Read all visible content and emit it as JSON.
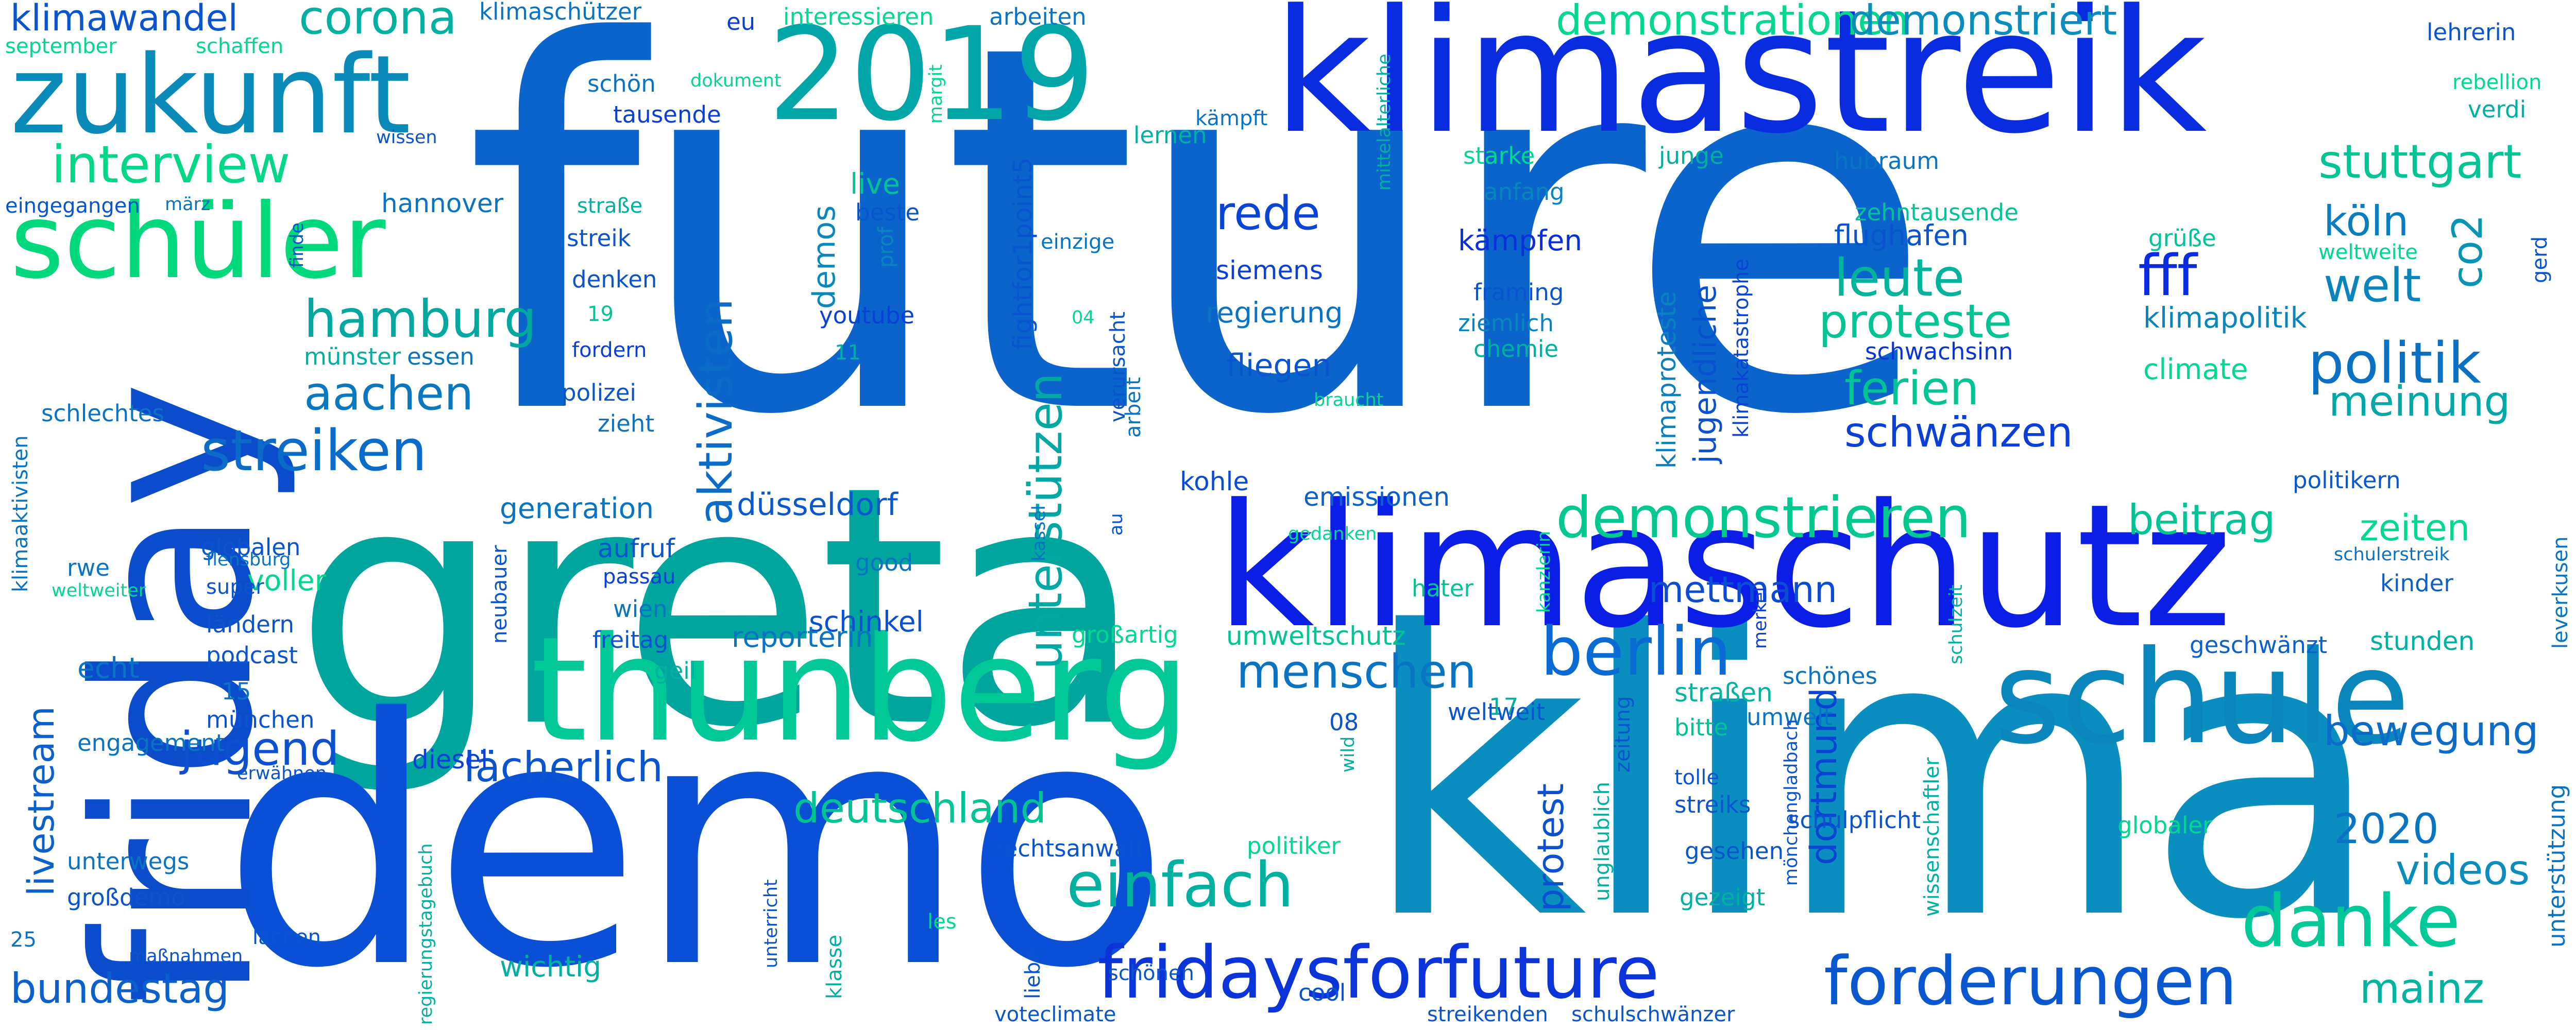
{
  "palette": [
    "#0a1ee6",
    "#0050d6",
    "#0a6fd0",
    "#008fb5",
    "#00aaa8",
    "#00c896",
    "#00e48a"
  ],
  "words": [
    {
      "text": "future",
      "color": "#0a64cc"
    },
    {
      "text": "greta",
      "color": "#00a59e"
    },
    {
      "text": "klima",
      "color": "#0a8ec0"
    },
    {
      "text": "demo",
      "color": "#0a50d6"
    },
    {
      "text": "klimaschutz",
      "color": "#0a1ee6"
    },
    {
      "text": "klimastreik",
      "color": "#0a2ce0"
    },
    {
      "text": "friday",
      "color": "#0a4ccc"
    },
    {
      "text": "thunberg",
      "color": "#00c896"
    },
    {
      "text": "2019",
      "color": "#00a5a8"
    },
    {
      "text": "zukunft",
      "color": "#0a8ab8"
    },
    {
      "text": "schule",
      "color": "#0a86bc"
    },
    {
      "text": "schüler",
      "color": "#00d87c"
    },
    {
      "text": "fridaysforfuture",
      "color": "#0a34d8"
    },
    {
      "text": "forderungen",
      "color": "#0a58d0"
    },
    {
      "text": "danke",
      "color": "#00c896"
    },
    {
      "text": "einfach",
      "color": "#00b0a0"
    },
    {
      "text": "demonstrieren",
      "color": "#00c890"
    },
    {
      "text": "berlin",
      "color": "#0a6ad4"
    },
    {
      "text": "interview",
      "color": "#00d888"
    },
    {
      "text": "hamburg",
      "color": "#00a8a0"
    },
    {
      "text": "streiken",
      "color": "#0a6cc8"
    },
    {
      "text": "aachen",
      "color": "#0a78c0"
    },
    {
      "text": "aktivisten",
      "color": "#0a6cc8"
    },
    {
      "text": "unterstützen",
      "color": "#00a8a4"
    },
    {
      "text": "menschen",
      "color": "#0a74c4"
    },
    {
      "text": "rede",
      "color": "#0a44d4"
    },
    {
      "text": "leute",
      "color": "#00b49c"
    },
    {
      "text": "proteste",
      "color": "#00c494"
    },
    {
      "text": "ferien",
      "color": "#00c494"
    },
    {
      "text": "fff",
      "color": "#0a2ce0"
    },
    {
      "text": "politik",
      "color": "#0a70c4"
    },
    {
      "text": "welt",
      "color": "#0a84bc"
    },
    {
      "text": "co2",
      "color": "#0a94b4"
    },
    {
      "text": "köln",
      "color": "#0a7cc0"
    },
    {
      "text": "stuttgart",
      "color": "#00c494"
    },
    {
      "text": "meinung",
      "color": "#00a8a8"
    },
    {
      "text": "beitrag",
      "color": "#00c496"
    },
    {
      "text": "zeiten",
      "color": "#00d890"
    },
    {
      "text": "bewegung",
      "color": "#0a6cc8"
    },
    {
      "text": "2020",
      "color": "#0a74c4"
    },
    {
      "text": "videos",
      "color": "#0a8cbc"
    },
    {
      "text": "mainz",
      "color": "#00b4a0"
    },
    {
      "text": "jugend",
      "color": "#0a50d0"
    },
    {
      "text": "lächerlich",
      "color": "#0a54d0"
    },
    {
      "text": "deutschland",
      "color": "#00c494"
    },
    {
      "text": "mettmann",
      "color": "#0a4cd4"
    },
    {
      "text": "schwänzen",
      "color": "#0a40d8"
    },
    {
      "text": "livestream",
      "color": "#0a60cc"
    },
    {
      "text": "bundestag",
      "color": "#0a60cc"
    },
    {
      "text": "demonstrationen",
      "color": "#00d890"
    },
    {
      "text": "demonstriert",
      "color": "#0a8cbc"
    },
    {
      "text": "klimawandel",
      "color": "#0a54d0"
    },
    {
      "text": "corona",
      "color": "#00b0a0"
    },
    {
      "text": "protest",
      "color": "#0a50d0"
    },
    {
      "text": "dortmund",
      "color": "#0a44d4"
    },
    {
      "text": "klimaproteste",
      "color": "#0a80c0"
    },
    {
      "text": "jugendliche",
      "color": "#0a50d0"
    },
    {
      "text": "klimakatastrophe",
      "color": "#0a44d4"
    },
    {
      "text": "fightfor1point5",
      "color": "#0a54d0"
    },
    {
      "text": "demos",
      "color": "#0a88bc"
    },
    {
      "text": "generation",
      "color": "#0a74c4"
    },
    {
      "text": "düsseldorf",
      "color": "#0a58cc"
    },
    {
      "text": "kohle",
      "color": "#0a4cd4"
    },
    {
      "text": "emissionen",
      "color": "#0a60cc"
    },
    {
      "text": "schinkel",
      "color": "#0a50d0"
    },
    {
      "text": "reporterin",
      "color": "#0a74c4"
    },
    {
      "text": "umweltschutz",
      "color": "#00c494"
    },
    {
      "text": "klimapolitik",
      "color": "#0a84bc"
    },
    {
      "text": "flughafen",
      "color": "#0a54d0"
    },
    {
      "text": "regierung",
      "color": "#0a74c4"
    },
    {
      "text": "fliegen",
      "color": "#0a54d0"
    },
    {
      "text": "siemens",
      "color": "#0a40d8"
    },
    {
      "text": "kämpfen",
      "color": "#0a30dc"
    },
    {
      "text": "politikern",
      "color": "#0a58d0"
    },
    {
      "text": "kinder",
      "color": "#0a60cc"
    },
    {
      "text": "stunden",
      "color": "#00b0a0"
    },
    {
      "text": "geschwänzt",
      "color": "#0a60cc"
    },
    {
      "text": "schönes",
      "color": "#0a74c4"
    },
    {
      "text": "straßen",
      "color": "#00b4a0"
    },
    {
      "text": "bitte",
      "color": "#00c496"
    },
    {
      "text": "umwelt",
      "color": "#0a74c4"
    },
    {
      "text": "streiks",
      "color": "#0a54d0"
    },
    {
      "text": "gesehen",
      "color": "#0a54d0"
    },
    {
      "text": "gezeigt",
      "color": "#00b0a0"
    },
    {
      "text": "schwachsinn",
      "color": "#0a34d8"
    },
    {
      "text": "climate",
      "color": "#00d890"
    },
    {
      "text": "zehntausende",
      "color": "#00c496"
    },
    {
      "text": "grüße",
      "color": "#00c496"
    },
    {
      "text": "weltweite",
      "color": "#00d890"
    },
    {
      "text": "hubraum",
      "color": "#0a74c4"
    },
    {
      "text": "junge",
      "color": "#00b0a0"
    },
    {
      "text": "starke",
      "color": "#00d890"
    },
    {
      "text": "anfang",
      "color": "#0a84bc"
    },
    {
      "text": "framing",
      "color": "#0a54d0"
    },
    {
      "text": "ziemlich",
      "color": "#0a84bc"
    },
    {
      "text": "chemie",
      "color": "#00b0a0"
    },
    {
      "text": "interessieren",
      "color": "#00d890"
    },
    {
      "text": "arbeiten",
      "color": "#0a74c4"
    },
    {
      "text": "lernen",
      "color": "#00b0a0"
    },
    {
      "text": "live",
      "color": "#00c496"
    },
    {
      "text": "beste",
      "color": "#0a54d0"
    },
    {
      "text": "einzige",
      "color": "#0a74c4"
    },
    {
      "text": "prof",
      "color": "#0a84bc"
    },
    {
      "text": "youtube",
      "color": "#0a40d8"
    },
    {
      "text": "11",
      "color": "#00b0a0"
    },
    {
      "text": "04",
      "color": "#00d890"
    },
    {
      "text": "verursacht",
      "color": "#0a54d0"
    },
    {
      "text": "arbeit",
      "color": "#0a74c4"
    },
    {
      "text": "braucht",
      "color": "#00d890"
    },
    {
      "text": "gedanken",
      "color": "#00d890"
    },
    {
      "text": "kassel",
      "color": "#0a74c4"
    },
    {
      "text": "au",
      "color": "#0a54d0"
    },
    {
      "text": "großartig",
      "color": "#00d890"
    },
    {
      "text": "08",
      "color": "#0a54d0"
    },
    {
      "text": "wild",
      "color": "#00b0a0"
    },
    {
      "text": "17",
      "color": "#00b0a0"
    },
    {
      "text": "weltweit",
      "color": "#0a54d0"
    },
    {
      "text": "hater",
      "color": "#00c496"
    },
    {
      "text": "kanzlerin",
      "color": "#00d890"
    },
    {
      "text": "zeitung",
      "color": "#0a54d0"
    },
    {
      "text": "merkel",
      "color": "#0a40d8"
    },
    {
      "text": "mönchengladbach",
      "color": "#0a54d0"
    },
    {
      "text": "wissenschaftler",
      "color": "#00b0a0"
    },
    {
      "text": "schulzeit",
      "color": "#00b0a0"
    },
    {
      "text": "unglaublich",
      "color": "#00b0a0"
    },
    {
      "text": "tolle",
      "color": "#0a54d0"
    },
    {
      "text": "schulpflicht",
      "color": "#0a54d0"
    },
    {
      "text": "globaler",
      "color": "#00d890"
    },
    {
      "text": "unterstützung",
      "color": "#0a74c4"
    },
    {
      "text": "leverkusen",
      "color": "#0a74c4"
    },
    {
      "text": "schulerstreik",
      "color": "#0a74c4"
    },
    {
      "text": "rebellion",
      "color": "#00d890"
    },
    {
      "text": "verdi",
      "color": "#00b0a0"
    },
    {
      "text": "lehrerin",
      "color": "#0a54d0"
    },
    {
      "text": "gerd",
      "color": "#0a54d0"
    },
    {
      "text": "mittelalterliche",
      "color": "#00b0a0"
    },
    {
      "text": "kämpft",
      "color": "#0a74c4"
    },
    {
      "text": "margit",
      "color": "#00d890"
    },
    {
      "text": "dokument",
      "color": "#00d890"
    },
    {
      "text": "eu",
      "color": "#0a40d8"
    },
    {
      "text": "klimaschützer",
      "color": "#0a74c4"
    },
    {
      "text": "september",
      "color": "#00d890"
    },
    {
      "text": "schaffen",
      "color": "#00d890"
    },
    {
      "text": "wissen",
      "color": "#0a54d0"
    },
    {
      "text": "schön",
      "color": "#0a74c4"
    },
    {
      "text": "tausende",
      "color": "#0a40d8"
    },
    {
      "text": "eingegangen",
      "color": "#0a54d0"
    },
    {
      "text": "märz",
      "color": "#0a74c4"
    },
    {
      "text": "finde",
      "color": "#0a54d0"
    },
    {
      "text": "hannover",
      "color": "#0a74c4"
    },
    {
      "text": "straße",
      "color": "#00b0a0"
    },
    {
      "text": "streik",
      "color": "#0a54d0"
    },
    {
      "text": "denken",
      "color": "#0a54d0"
    },
    {
      "text": "19",
      "color": "#00c496"
    },
    {
      "text": "fordern",
      "color": "#0a40d8"
    },
    {
      "text": "münster",
      "color": "#00b0a0"
    },
    {
      "text": "essen",
      "color": "#0a74c4"
    },
    {
      "text": "polizei",
      "color": "#0a54d0"
    },
    {
      "text": "zieht",
      "color": "#0a74c4"
    },
    {
      "text": "schlechtes",
      "color": "#0a74c4"
    },
    {
      "text": "klimaaktivisten",
      "color": "#0a74c4"
    },
    {
      "text": "globalen",
      "color": "#0a54d0"
    },
    {
      "text": "rwe",
      "color": "#0a74c4"
    },
    {
      "text": "voller",
      "color": "#00d890"
    },
    {
      "text": "flensburg",
      "color": "#0a74c4"
    },
    {
      "text": "super",
      "color": "#0a54d0"
    },
    {
      "text": "weltweiter",
      "color": "#00d890"
    },
    {
      "text": "ländern",
      "color": "#0a54d0"
    },
    {
      "text": "podcast",
      "color": "#0a54d0"
    },
    {
      "text": "15",
      "color": "#0a74c4"
    },
    {
      "text": "münchen",
      "color": "#0a54d0"
    },
    {
      "text": "echt",
      "color": "#0a74c4"
    },
    {
      "text": "engagement",
      "color": "#0a74c4"
    },
    {
      "text": "erwähnen",
      "color": "#0a54d0"
    },
    {
      "text": "unterwegs",
      "color": "#0a74c4"
    },
    {
      "text": "großdemo",
      "color": "#0a54d0"
    },
    {
      "text": "25",
      "color": "#0a74c4"
    },
    {
      "text": "regierungstagebuch",
      "color": "#00b0a0"
    },
    {
      "text": "lachen",
      "color": "#0a54d0"
    },
    {
      "text": "maßnahmen",
      "color": "#0a54d0"
    },
    {
      "text": "aufruf",
      "color": "#0a54d0"
    },
    {
      "text": "passau",
      "color": "#0a40d8"
    },
    {
      "text": "wien",
      "color": "#0a74c4"
    },
    {
      "text": "freitag",
      "color": "#0a54d0"
    },
    {
      "text": "geil",
      "color": "#00b0a0"
    },
    {
      "text": "neubauer",
      "color": "#0a54d0"
    },
    {
      "text": "good",
      "color": "#0a74c4"
    },
    {
      "text": "diesel",
      "color": "#0a40d8"
    },
    {
      "text": "wichtig",
      "color": "#00b0a0"
    },
    {
      "text": "klasse",
      "color": "#00b0a0"
    },
    {
      "text": "unterricht",
      "color": "#0a54d0"
    },
    {
      "text": "les",
      "color": "#00d890"
    },
    {
      "text": "liebe",
      "color": "#0a54d0"
    },
    {
      "text": "schönen",
      "color": "#0a54d0"
    },
    {
      "text": "rechtsanwalt",
      "color": "#0a54d0"
    },
    {
      "text": "politiker",
      "color": "#00d890"
    },
    {
      "text": "cool",
      "color": "#0a54d0"
    },
    {
      "text": "voteclimate",
      "color": "#0a54d0"
    },
    {
      "text": "streikenden",
      "color": "#0a54d0"
    },
    {
      "text": "schulschwänzer",
      "color": "#0a54d0"
    }
  ]
}
